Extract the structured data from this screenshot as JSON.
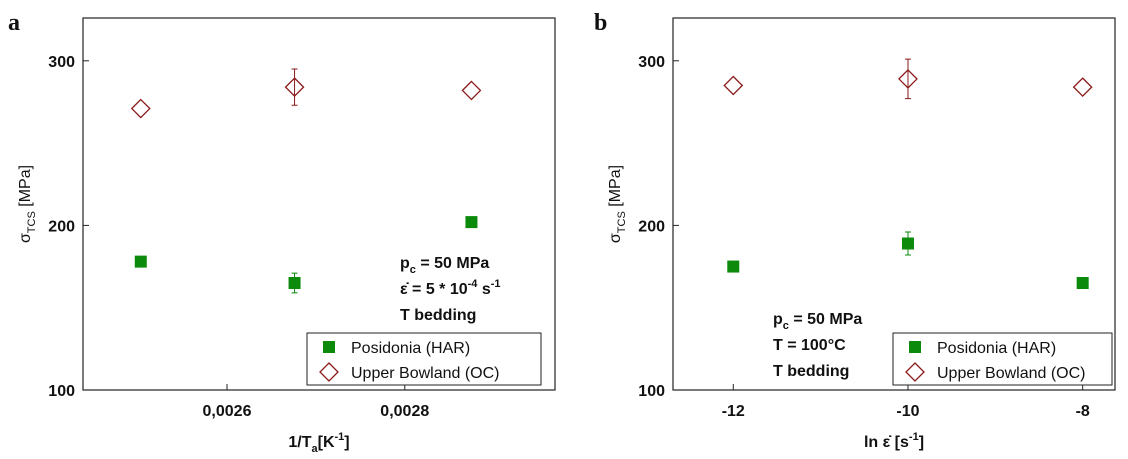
{
  "chart_data": [
    {
      "type": "scatter",
      "panel_label": "a",
      "x_label": [
        {
          "text": "1/T"
        },
        {
          "text": "a",
          "shift": "sub"
        },
        {
          "text": "[K"
        },
        {
          "text": "-1",
          "shift": "sup"
        },
        {
          "text": "]"
        }
      ],
      "y_label": [
        {
          "text": "σ"
        },
        {
          "text": "TCS",
          "shift": "sub"
        },
        {
          "text": " [MPa]"
        }
      ],
      "xlim": [
        0.002438,
        0.002969
      ],
      "ylim": [
        100,
        326
      ],
      "xticks": [
        {
          "value": 0.0026,
          "label": "0,0026"
        },
        {
          "value": 0.0028,
          "label": "0,0028"
        }
      ],
      "yticks": [
        100,
        200,
        300
      ],
      "legend": "lower right",
      "series": [
        {
          "name": "Posidonia (HAR)",
          "color": "#0b8a0b",
          "marker": "square",
          "x": [
            0.002503,
            0.002676,
            0.002875
          ],
          "values": [
            178,
            165,
            202
          ],
          "errors": [
            null,
            6,
            null
          ]
        },
        {
          "name": "Upper Bowland (OC)",
          "color": "#8b1a1a",
          "marker": "diamond",
          "x": [
            0.002503,
            0.002676,
            0.002875
          ],
          "values": [
            271,
            284,
            282
          ],
          "errors": [
            null,
            11,
            null
          ]
        }
      ],
      "annotations": [
        [
          {
            "text": "p"
          },
          {
            "text": "c",
            "shift": "sub"
          },
          {
            "text": " = 50 MPa"
          }
        ],
        [
          {
            "text": "ε̇"
          },
          {
            "text": "  = 5 * 10"
          },
          {
            "text": "-4",
            "shift": "sup"
          },
          {
            "text": " s"
          },
          {
            "text": "-1",
            "shift": "sup"
          }
        ],
        [
          {
            "text": "T bedding"
          }
        ]
      ]
    },
    {
      "type": "scatter",
      "panel_label": "b",
      "x_label": [
        {
          "text": "ln ε̇ [s"
        },
        {
          "text": "-1",
          "shift": "sup"
        },
        {
          "text": "]"
        }
      ],
      "y_label": [
        {
          "text": "σ"
        },
        {
          "text": "TCS",
          "shift": "sub"
        },
        {
          "text": " [MPa]"
        }
      ],
      "xlim": [
        -12.69,
        -7.63
      ],
      "ylim": [
        100,
        326
      ],
      "xticks": [
        -12,
        -10,
        -8
      ],
      "yticks": [
        100,
        200,
        300
      ],
      "legend": "lower right",
      "series": [
        {
          "name": "Posidonia (HAR)",
          "color": "#0b8a0b",
          "marker": "square",
          "x": [
            -12,
            -10,
            -8
          ],
          "values": [
            175,
            189,
            165
          ],
          "errors": [
            null,
            7,
            null
          ]
        },
        {
          "name": "Upper Bowland (OC)",
          "color": "#8b1a1a",
          "marker": "diamond",
          "x": [
            -12,
            -10,
            -8
          ],
          "values": [
            285,
            289,
            284
          ],
          "errors": [
            null,
            12,
            null
          ]
        }
      ],
      "annotations": [
        [
          {
            "text": "p"
          },
          {
            "text": "c",
            "shift": "sub"
          },
          {
            "text": " = 50 MPa"
          }
        ],
        [
          {
            "text": "T  = 100°C"
          }
        ],
        [
          {
            "text": "T bedding"
          }
        ]
      ]
    }
  ]
}
